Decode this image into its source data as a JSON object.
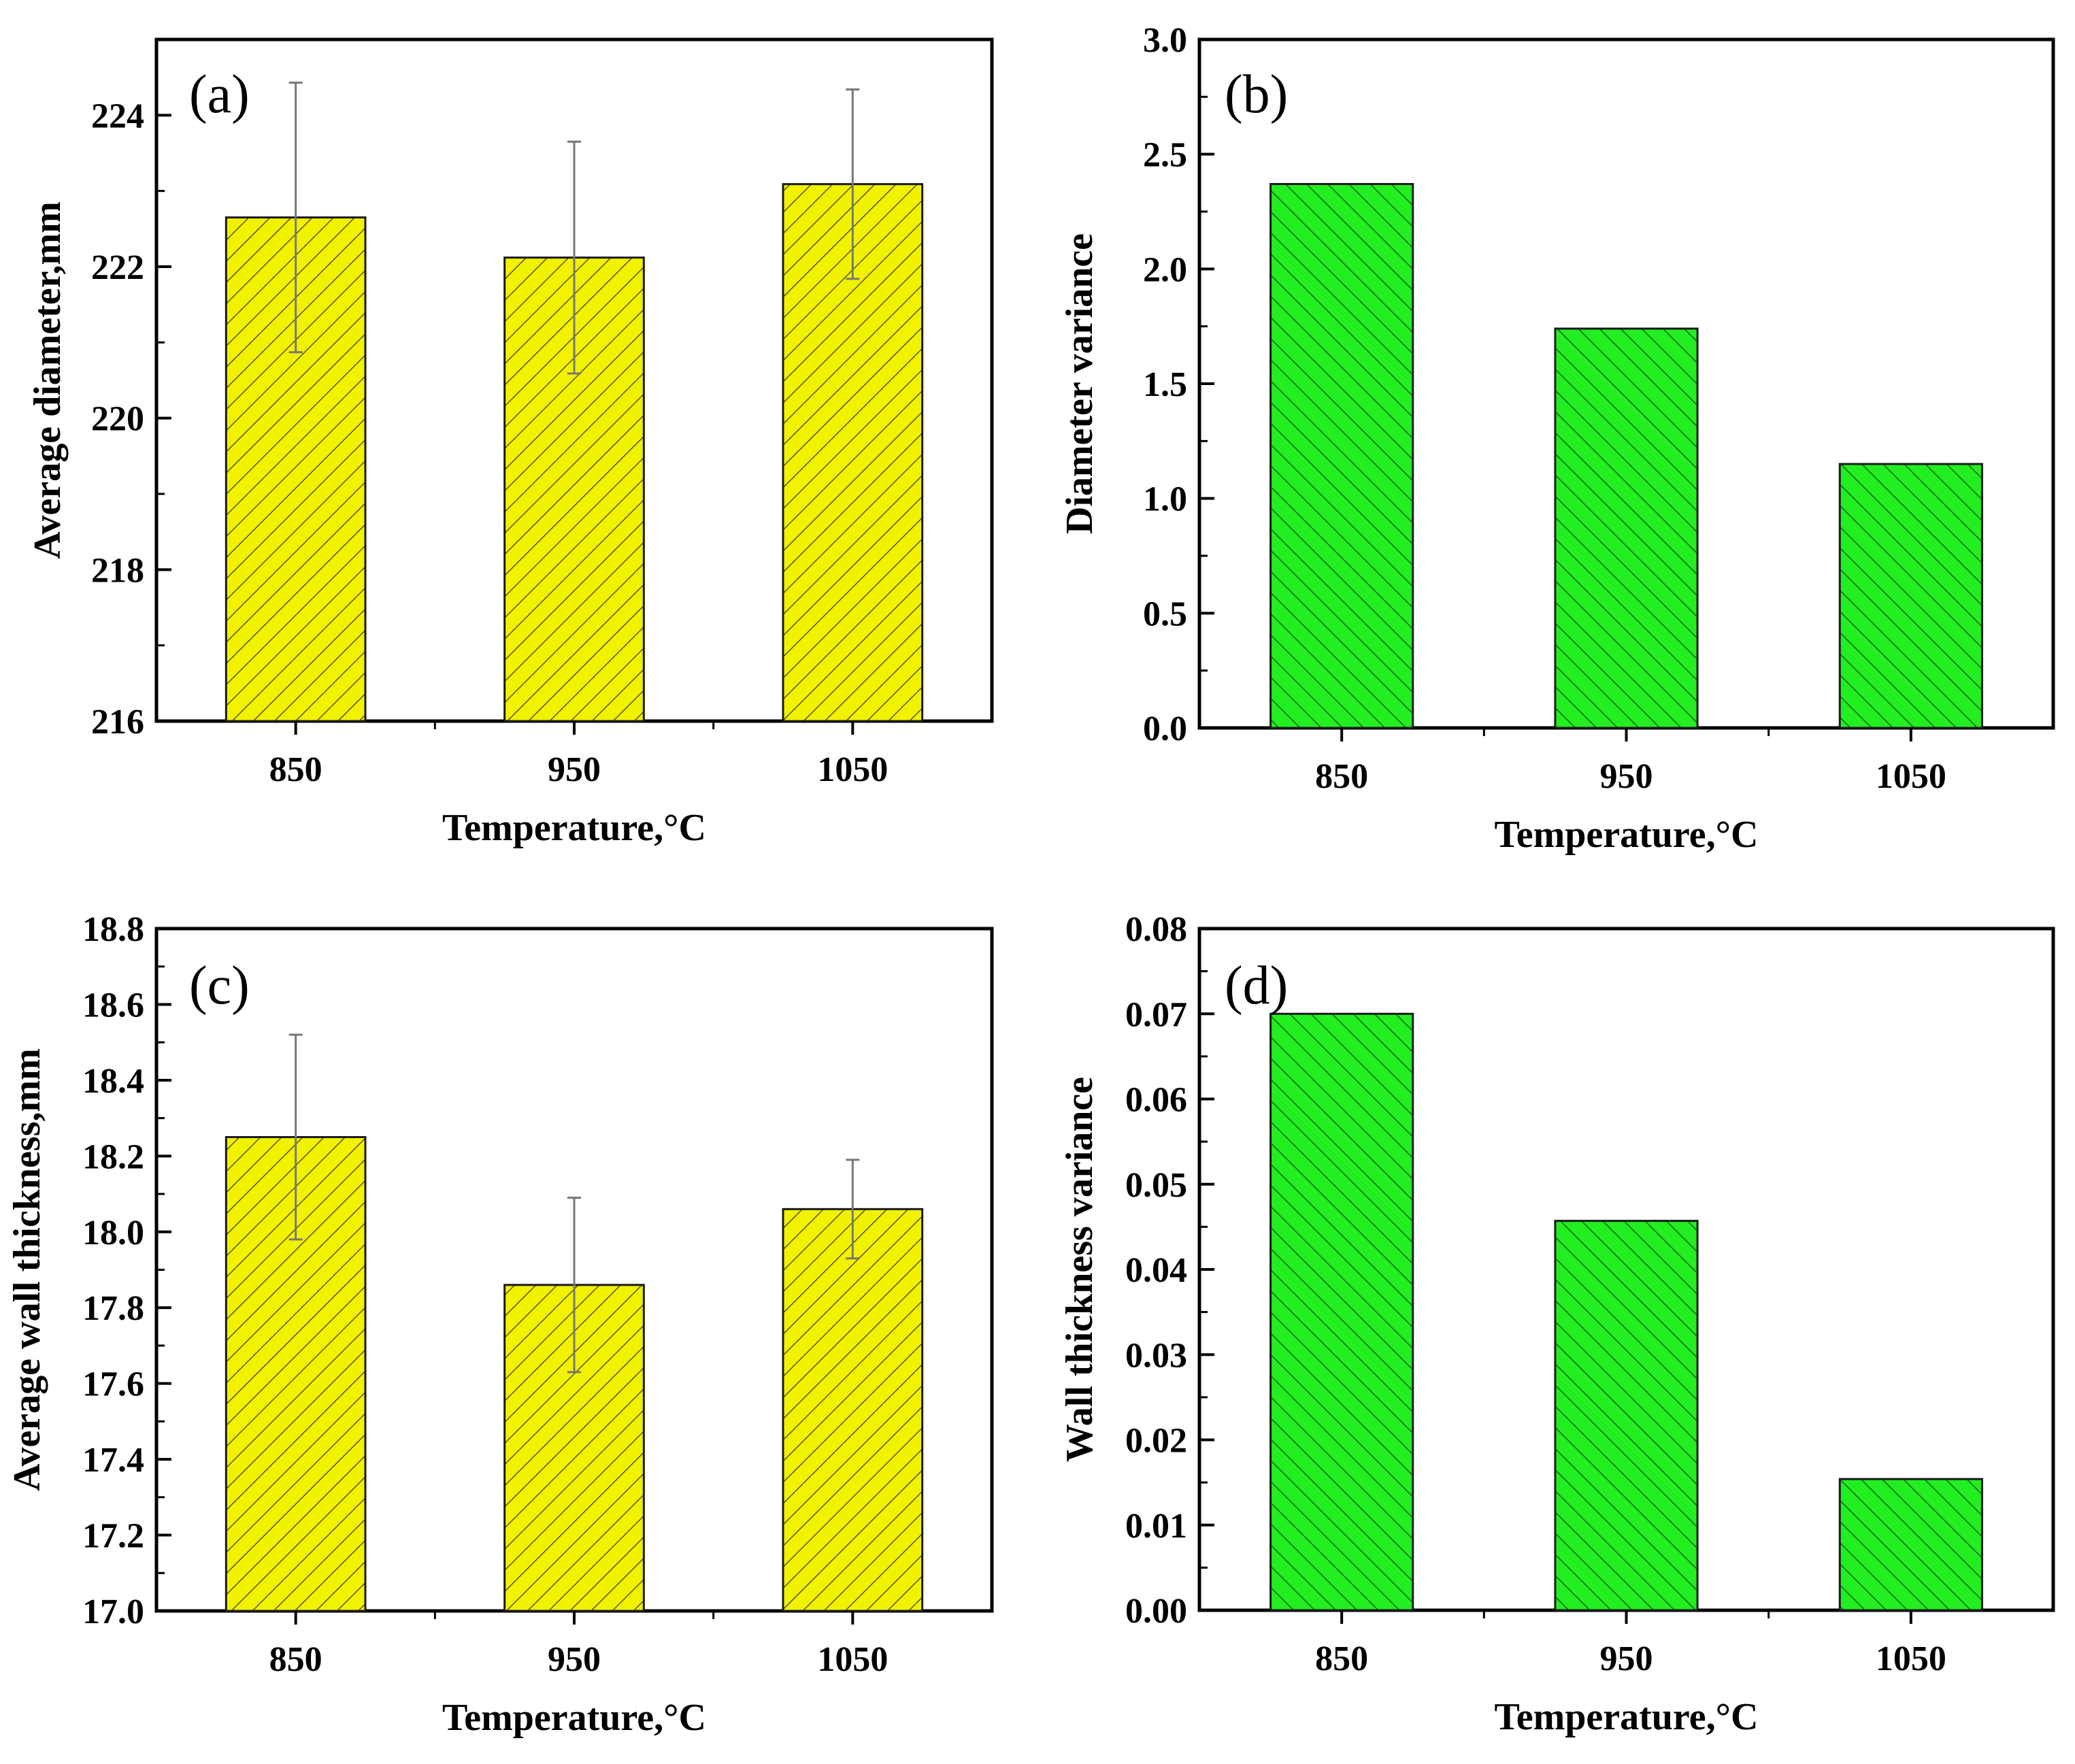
{
  "colors": {
    "yellow_fill": "#f2f200",
    "green_fill": "#22ee22",
    "bar_stroke": "#1a1a1a",
    "error_bar": "#777777",
    "axis": "#000000"
  },
  "chart_data": [
    {
      "type": "bar",
      "panel": "(a)",
      "categories": [
        "850",
        "950",
        "1050"
      ],
      "values": [
        222.65,
        222.12,
        223.09
      ],
      "errors": [
        1.78,
        1.53,
        1.25
      ],
      "xlabel": "Temperature,°C",
      "ylabel": "Average diameter,mm",
      "ylim": [
        216,
        225
      ],
      "yticks": [
        "216",
        "218",
        "220",
        "222",
        "224"
      ],
      "fill": "yellow",
      "legend": "none"
    },
    {
      "type": "bar",
      "panel": "(b)",
      "categories": [
        "850",
        "950",
        "1050"
      ],
      "values": [
        2.37,
        1.74,
        1.15
      ],
      "xlabel": "Temperature,°C",
      "ylabel": "Diameter variance",
      "ylim": [
        0.0,
        3.0
      ],
      "yticks": [
        "0.0",
        "0.5",
        "1.0",
        "1.5",
        "2.0",
        "2.5",
        "3.0"
      ],
      "fill": "green",
      "legend": "none"
    },
    {
      "type": "bar",
      "panel": "(c)",
      "categories": [
        "850",
        "950",
        "1050"
      ],
      "values": [
        18.25,
        17.86,
        18.06
      ],
      "errors": [
        0.27,
        0.23,
        0.13
      ],
      "xlabel": "Temperature,°C",
      "ylabel": "Average wall thickness,mm",
      "ylim": [
        17.0,
        18.8
      ],
      "yticks": [
        "17.0",
        "17.2",
        "17.4",
        "17.6",
        "17.8",
        "18.0",
        "18.2",
        "18.4",
        "18.6",
        "18.8"
      ],
      "fill": "yellow",
      "legend": "none"
    },
    {
      "type": "bar",
      "panel": "(d)",
      "categories": [
        "850",
        "950",
        "1050"
      ],
      "values": [
        0.07,
        0.0457,
        0.0154
      ],
      "xlabel": "Temperature,°C",
      "ylabel": "Wall thickness  variance",
      "ylim": [
        0.0,
        0.08
      ],
      "yticks": [
        "0.00",
        "0.01",
        "0.02",
        "0.03",
        "0.04",
        "0.05",
        "0.06",
        "0.07",
        "0.08"
      ],
      "fill": "green",
      "legend": "none"
    }
  ]
}
